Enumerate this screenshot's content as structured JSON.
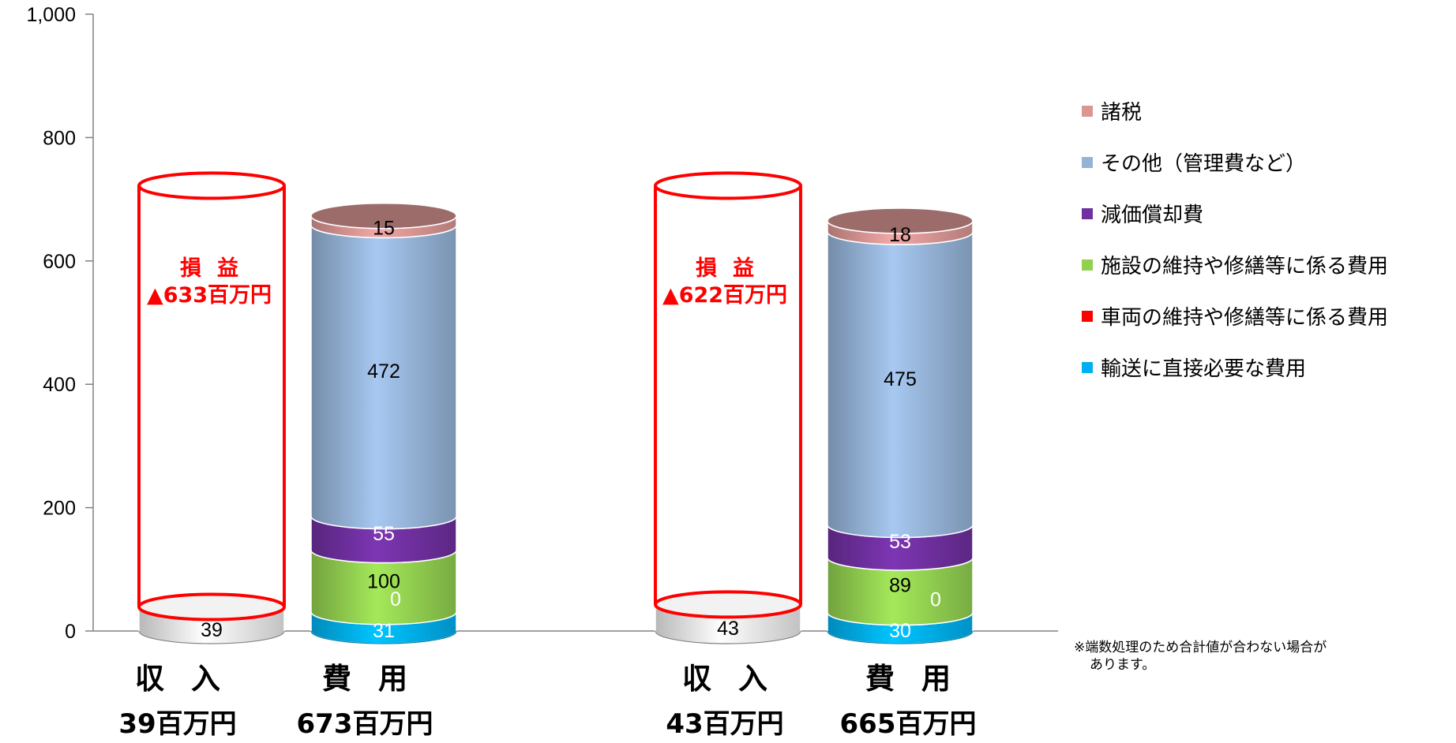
{
  "chart_data": {
    "type": "bar",
    "stacked": true,
    "ylim": [
      0,
      1000
    ],
    "y_ticks": [
      "0",
      "200",
      "400",
      "600",
      "800",
      "1,000"
    ],
    "y_tick_values": [
      0,
      200,
      400,
      600,
      800,
      1000
    ],
    "groups": [
      {
        "revenue": {
          "value": 39,
          "label": "39"
        },
        "costs": [
          31,
          0,
          100,
          55,
          472,
          15
        ],
        "revenue_label": [
          "収",
          "入"
        ],
        "revenue_total": "39百万円",
        "cost_label": [
          "費",
          "用"
        ],
        "cost_total": "673百万円",
        "profit_title": "損益",
        "profit_value": "▲633百万円",
        "profit_line": 722
      },
      {
        "revenue": {
          "value": 43,
          "label": "43"
        },
        "costs": [
          30,
          0,
          89,
          53,
          475,
          18
        ],
        "revenue_label": [
          "収",
          "入"
        ],
        "revenue_total": "43百万円",
        "cost_label": [
          "費",
          "用"
        ],
        "cost_total": "665百万円",
        "profit_title": "損益",
        "profit_value": "▲622百万円",
        "profit_line": 722
      }
    ],
    "series": [
      {
        "name": "輸送に直接必要な費用",
        "color": "#00b0f0"
      },
      {
        "name": "車両の維持や修繕等に係る費用",
        "color": "#ff0000"
      },
      {
        "name": "施設の維持や修繕等に係る費用",
        "color": "#92d050"
      },
      {
        "name": "減価償却費",
        "color": "#7030a0"
      },
      {
        "name": "その他（管理費など）",
        "color": "#95b3d7"
      },
      {
        "name": "諸税",
        "color": "#d99694"
      }
    ],
    "legend_order": [
      "諸税",
      "その他（管理費など）",
      "減価償却費",
      "施設の維持や修繕等に係る費用",
      "車両の維持や修繕等に係る費用",
      "輸送に直接必要な費用"
    ],
    "legend_colors": [
      "#d99694",
      "#95b3d7",
      "#7030a0",
      "#92d050",
      "#ff0000",
      "#00b0f0"
    ],
    "label_colors": [
      "#ffffff",
      "#ffffff",
      "#000000",
      "#ffffff",
      "#000000",
      "#000000"
    ]
  },
  "note": [
    "※端数処理のため合計値が合わない場合が",
    "あります。"
  ]
}
